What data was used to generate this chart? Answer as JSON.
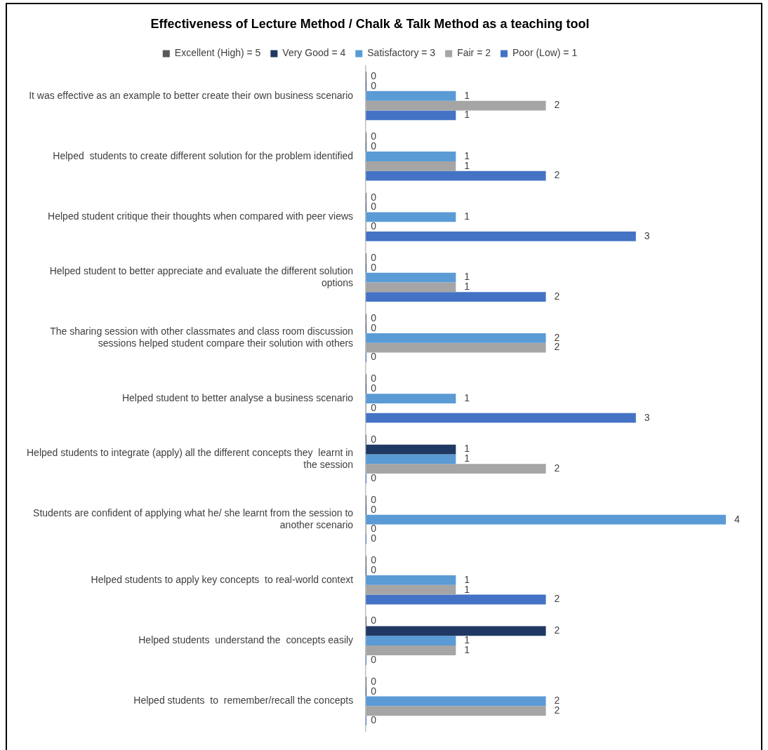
{
  "chart_data": {
    "type": "bar",
    "orientation": "horizontal",
    "title": "Effectiveness of Lecture Method / Chalk & Talk Method as a teaching tool",
    "categories": [
      "It was effective as an example to better create their own business scenario",
      "Helped  students to create different solution for the problem identified",
      "Helped student critique their thoughts when compared with peer views",
      "Helped student to better appreciate and evaluate the different solution options",
      "The sharing session with other classmates and class room discussion sessions helped student compare their solution with others",
      "Helped student to better analyse a business scenario",
      "Helped students to integrate (apply) all the different concepts they  learnt in the session",
      "Students are confident of applying what he/ she learnt from the session to another scenario",
      "Helped students to apply key concepts  to real-world context",
      "Helped students  understand the  concepts easily",
      "Helped students  to  remember/recall the concepts"
    ],
    "series": [
      {
        "name": "Excellent (High) = 5",
        "color": "#595959",
        "values": [
          0,
          0,
          0,
          0,
          0,
          0,
          0,
          0,
          0,
          0,
          0
        ]
      },
      {
        "name": "Very Good = 4",
        "color": "#203864",
        "values": [
          0,
          0,
          0,
          0,
          0,
          0,
          1,
          0,
          0,
          2,
          0
        ]
      },
      {
        "name": "Satisfactory = 3",
        "color": "#5b9bd5",
        "values": [
          1,
          1,
          1,
          1,
          2,
          1,
          1,
          4,
          1,
          1,
          2
        ]
      },
      {
        "name": "Fair = 2",
        "color": "#a5a5a5",
        "values": [
          2,
          1,
          0,
          1,
          2,
          0,
          2,
          0,
          1,
          1,
          2
        ]
      },
      {
        "name": "Poor (Low) = 1",
        "color": "#4472c4",
        "values": [
          1,
          2,
          3,
          2,
          0,
          3,
          0,
          0,
          2,
          0,
          0
        ]
      }
    ],
    "xlim": [
      0,
      4
    ],
    "data_labels": true,
    "legend": "top",
    "grid": false,
    "tick_labels": "y"
  }
}
